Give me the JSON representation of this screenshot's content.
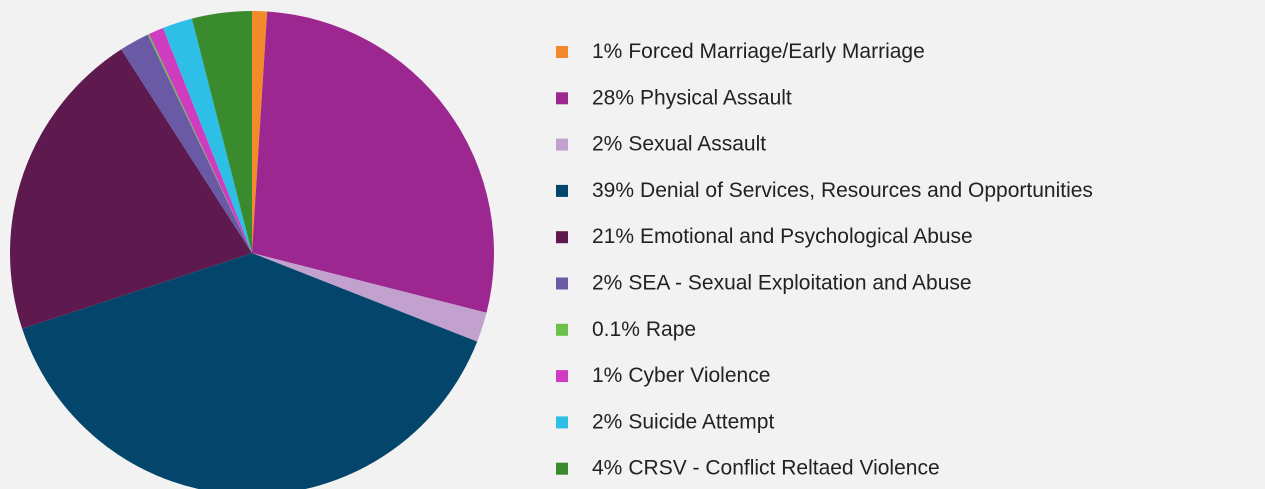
{
  "chart_data": {
    "type": "pie",
    "categories": [
      "Forced Marriage/Early Marriage",
      "Physical Assault",
      "Sexual Assault",
      "Denial of Services, Resources and Opportunities",
      "Emotional and Psychological Abuse",
      "SEA - Sexual Exploitation and Abuse",
      "Rape",
      "Cyber Violence",
      "Suicide Attempt",
      "CRSV - Conflict Reltaed Violence"
    ],
    "values": [
      1,
      28,
      2,
      39,
      21,
      2,
      0.1,
      1,
      2,
      4
    ],
    "value_labels": [
      "1%",
      "28%",
      "2%",
      "39%",
      "21%",
      "2%",
      "0.1%",
      "1%",
      "2%",
      "4%"
    ],
    "colors": [
      "#f28a2c",
      "#9c2791",
      "#c3a1cf",
      "#04456b",
      "#5e1a4e",
      "#6a5aa6",
      "#6cc04a",
      "#d03cbf",
      "#2ebfe6",
      "#3a8a2e"
    ],
    "legend": "right"
  }
}
